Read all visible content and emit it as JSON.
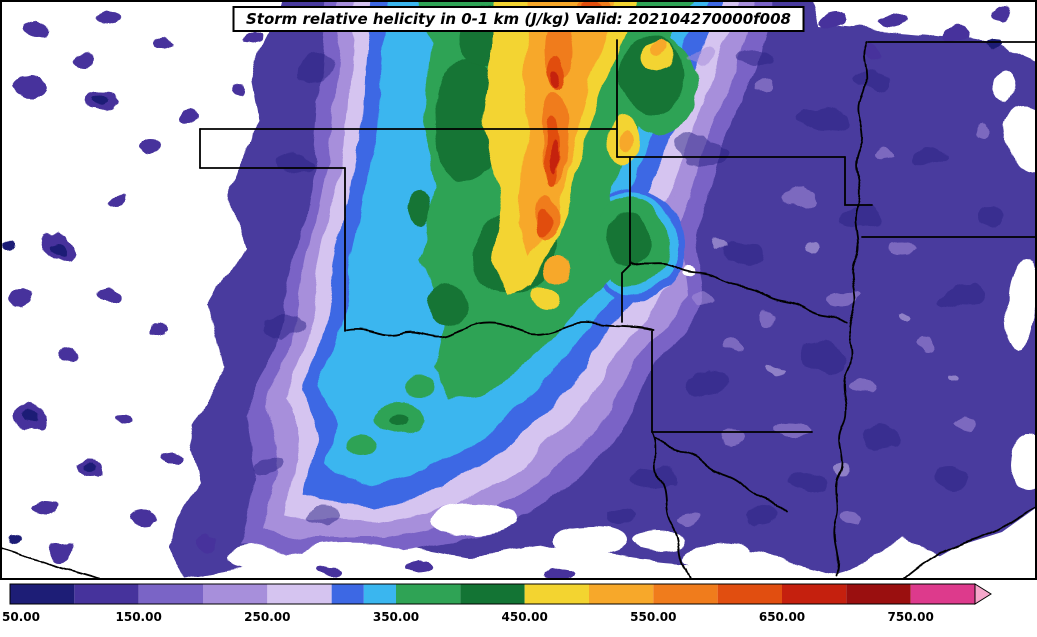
{
  "title_box": {
    "text": "Storm relative helicity in 0-1 km (J/kg) Valid: 202104270000f008"
  },
  "map": {
    "background_color": "#ffffff",
    "border_color": "#000000",
    "state_line_color": "#000000",
    "region": "South-central United States (Kansas, Oklahoma, Texas, Missouri, Arkansas, Louisiana)"
  },
  "chart_data": {
    "type": "heatmap",
    "subtype": "filled_contour_map",
    "title": "Storm relative helicity in 0-1 km (J/kg) Valid: 202104270000f008",
    "variable": "Storm relative helicity 0-1 km",
    "units": "J/kg",
    "valid_label": "202104270000f008",
    "field_summary": "Broad 50-250 J/kg purple field over eastern OK, AR, LA and east TX; enhanced NNE-SSW band of 350-450 J/kg (greens) from Kansas through central Oklahoma, with embedded 450-700+ J/kg (yellow/orange/red) core near the KS/OK border; cyan/blue 250-350 J/kg tail extending southwest into northwest Texas; values below 50 (white) over the far west and along the bottom.",
    "colorbar": {
      "min": 50,
      "max": 800,
      "extend": "max",
      "tick_values": [
        50,
        150,
        250,
        350,
        450,
        550,
        650,
        750
      ],
      "tick_labels": [
        "50.00",
        "150.00",
        "250.00",
        "350.00",
        "450.00",
        "550.00",
        "650.00",
        "750.00"
      ],
      "segments": [
        {
          "from": 50,
          "to": 100,
          "color": "#1d1d76"
        },
        {
          "from": 100,
          "to": 150,
          "color": "#46339c"
        },
        {
          "from": 150,
          "to": 200,
          "color": "#7a64c6"
        },
        {
          "from": 200,
          "to": 250,
          "color": "#a78fdb"
        },
        {
          "from": 250,
          "to": 300,
          "color": "#d5c4f0"
        },
        {
          "from": 300,
          "to": 325,
          "color": "#3d68e4"
        },
        {
          "from": 325,
          "to": 350,
          "color": "#3ab6ef"
        },
        {
          "from": 350,
          "to": 400,
          "color": "#2fa355"
        },
        {
          "from": 400,
          "to": 450,
          "color": "#137434"
        },
        {
          "from": 450,
          "to": 500,
          "color": "#f3d430"
        },
        {
          "from": 500,
          "to": 550,
          "color": "#f7a82a"
        },
        {
          "from": 550,
          "to": 600,
          "color": "#f07c1c"
        },
        {
          "from": 600,
          "to": 650,
          "color": "#e14e10"
        },
        {
          "from": 650,
          "to": 700,
          "color": "#c5200e"
        },
        {
          "from": 700,
          "to": 750,
          "color": "#9a0f0f"
        },
        {
          "from": 750,
          "to": 800,
          "color": "#dd3a8c"
        }
      ],
      "arrow_color": "#f6a7cb",
      "label_font_size": 12
    }
  }
}
